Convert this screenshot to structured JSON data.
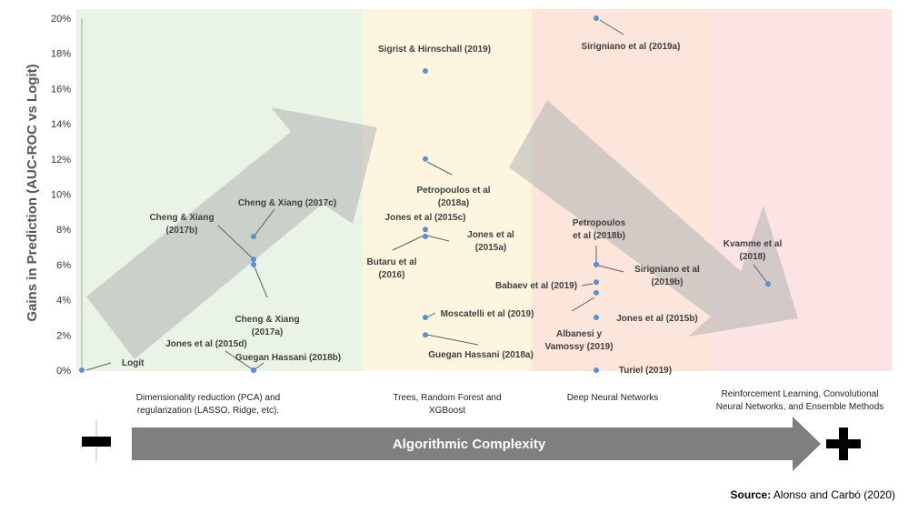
{
  "chart_data": {
    "type": "scatter",
    "title": "",
    "ylabel": "Gains in Prediction (AUC-ROC vs Logit)",
    "xlabel": "Algorithmic Complexity",
    "ylim": [
      0,
      20
    ],
    "yticks": [
      "0%",
      "2%",
      "4%",
      "6%",
      "8%",
      "10%",
      "12%",
      "14%",
      "16%",
      "18%",
      "20%"
    ],
    "categories": [
      "Dimensionality reduction (PCA) and\nregularization (LASSO, Ridge, etc).",
      "Trees, Random Forest and\nXGBoost",
      "Deep Neural Networks",
      "Reinforcement Learning, Convolutional\nNeural Networks, and Ensemble Methods"
    ],
    "region_colors": [
      "#eaf4e6",
      "#fdf5e0",
      "#fce6dc",
      "#fde4e4"
    ],
    "points": [
      {
        "label": "Logit",
        "category": 0,
        "y": 0
      },
      {
        "label": "Jones et al (2015d)",
        "category": 0,
        "y": 0
      },
      {
        "label": "Guegan Hassani (2018b)",
        "category": 0,
        "y": 0
      },
      {
        "label": "Cheng & Xiang (2017c)",
        "category": 0,
        "y": 7.6
      },
      {
        "label": "Cheng & Xiang\n(2017b)",
        "category": 0,
        "y": 6.3
      },
      {
        "label": "Cheng & Xiang\n(2017a)",
        "category": 0,
        "y": 6.0
      },
      {
        "label": "Sigrist & Hirnschall (2019)",
        "category": 1,
        "y": 17
      },
      {
        "label": "Petropoulos et al\n(2018a)",
        "category": 1,
        "y": 12
      },
      {
        "label": "Jones et al (2015c)",
        "category": 1,
        "y": 8
      },
      {
        "label": "Jones et al\n(2015a)",
        "category": 1,
        "y": 7.6
      },
      {
        "label": "Butaru et al\n(2016)",
        "category": 1,
        "y": 7.6
      },
      {
        "label": "Moscatelli et al (2019)",
        "category": 1,
        "y": 3
      },
      {
        "label": "Guegan Hassani (2018a)",
        "category": 1,
        "y": 2
      },
      {
        "label": "Sirigniano et al (2019a)",
        "category": 2,
        "y": 20
      },
      {
        "label": "Petropoulos\net al (2018b)",
        "category": 2,
        "y": 6
      },
      {
        "label": "Sirigniano et al\n(2019b)",
        "category": 2,
        "y": 6
      },
      {
        "label": "Babaev et al (2019)",
        "category": 2,
        "y": 5
      },
      {
        "label": "Albanesi y\nVamossy (2019)",
        "category": 2,
        "y": 4.4
      },
      {
        "label": "Jones et al (2015b)",
        "category": 2,
        "y": 3
      },
      {
        "label": "Turiel (2019)",
        "category": 2,
        "y": 0
      },
      {
        "label": "Kvamme et al\n(2018)",
        "category": 3,
        "y": 4.9
      }
    ],
    "point_color": "#5b8fd0",
    "arrow_color": "#7f7f7f"
  },
  "axis_markers": {
    "minus": "minus-sign",
    "plus": "plus-sign"
  },
  "source": {
    "label": "Source:",
    "text": "Alonso and Carbó (2020)"
  }
}
